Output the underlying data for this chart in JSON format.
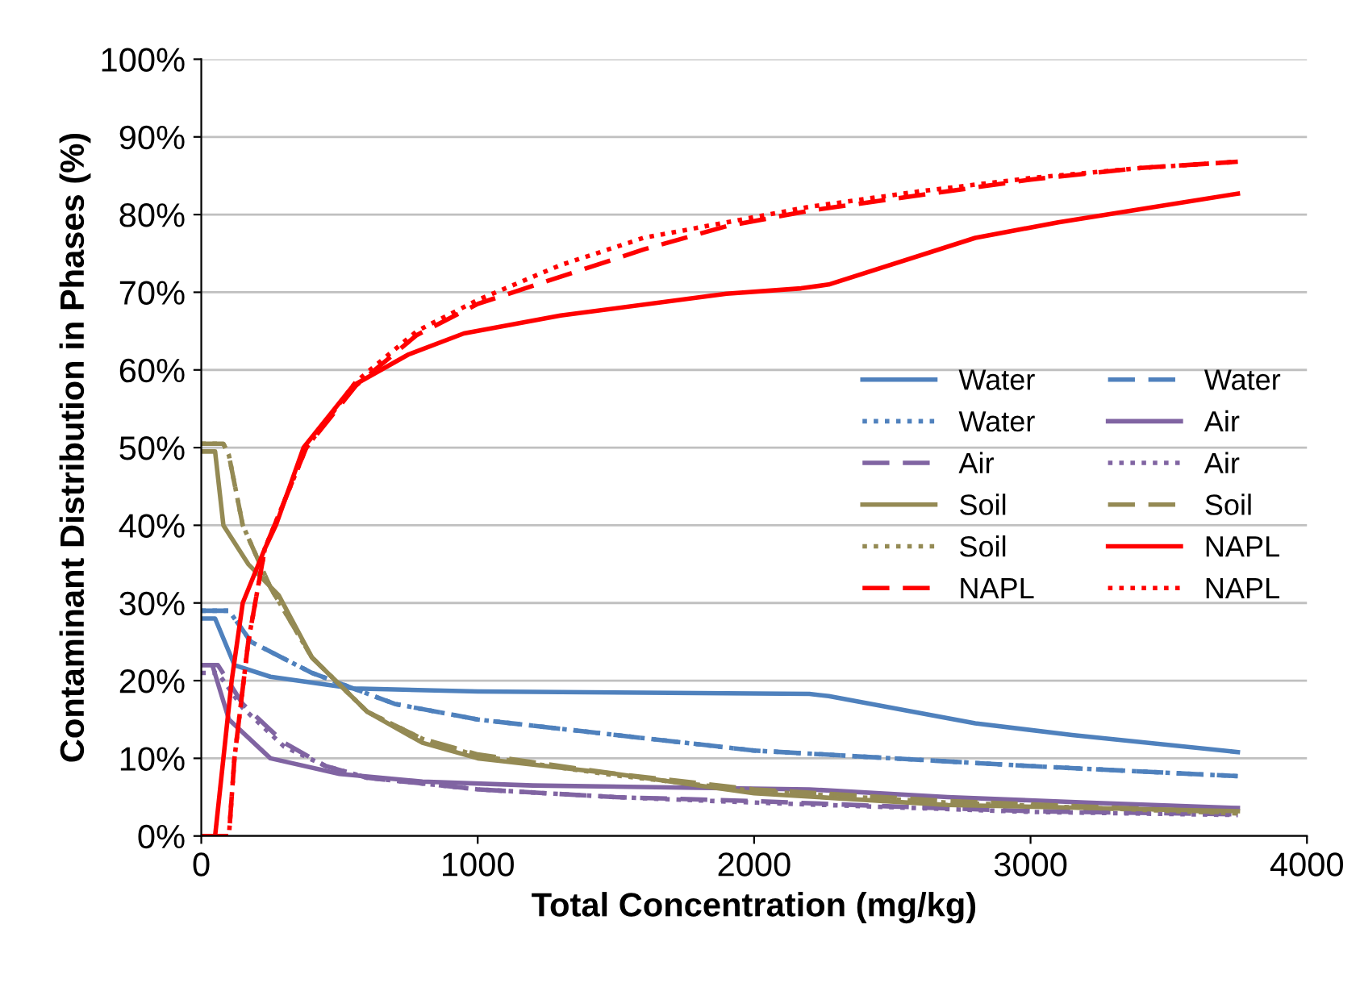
{
  "chart_data": {
    "type": "line",
    "xlabel": "Total Concentration (mg/kg)",
    "ylabel": "Contaminant Distribution in Phases (%)",
    "xlim": [
      0,
      4000
    ],
    "xticks": [
      0,
      1000,
      2000,
      3000,
      4000
    ],
    "ylim": [
      0,
      100
    ],
    "yticks": [
      {
        "value": 0,
        "label": "0%"
      },
      {
        "value": 10,
        "label": "10%"
      },
      {
        "value": 20,
        "label": "20%"
      },
      {
        "value": 30,
        "label": "30%"
      },
      {
        "value": 40,
        "label": "40%"
      },
      {
        "value": 50,
        "label": "50%"
      },
      {
        "value": 60,
        "label": "60%"
      },
      {
        "value": 70,
        "label": "70%"
      },
      {
        "value": 80,
        "label": "80%"
      },
      {
        "value": 90,
        "label": "90%"
      },
      {
        "value": 100,
        "label": "100%"
      }
    ],
    "grid": "y",
    "legend": "right",
    "marker": "none",
    "series": [
      {
        "name": "Water",
        "color": "#4f81bd",
        "line_style": "solid",
        "x": [
          0,
          50,
          120,
          250,
          550,
          1000,
          2200,
          2270,
          2800,
          3150,
          3750
        ],
        "values": [
          28,
          28,
          22,
          20.5,
          19,
          18.6,
          18.3,
          18,
          14.5,
          13,
          10.8
        ]
      },
      {
        "name": "Water",
        "color": "#4f81bd",
        "line_style": "dashed",
        "x": [
          0,
          100,
          180,
          400,
          700,
          1000,
          1500,
          2000,
          2500,
          3000,
          3750
        ],
        "values": [
          29,
          29,
          25,
          21,
          17,
          15,
          13,
          11,
          10,
          9,
          7.7
        ]
      },
      {
        "name": "Water",
        "color": "#4f81bd",
        "line_style": "dotted",
        "x": [
          0,
          100,
          180,
          400,
          700,
          1000,
          1500,
          2000,
          2500,
          3000,
          3750
        ],
        "values": [
          29,
          29,
          25,
          21,
          17,
          15,
          13,
          11,
          10,
          9,
          7.7
        ]
      },
      {
        "name": "Air",
        "color": "#8064a2",
        "line_style": "solid",
        "x": [
          0,
          40,
          100,
          250,
          500,
          800,
          1200,
          2200,
          2700,
          3200,
          3750
        ],
        "values": [
          22,
          22,
          15,
          10,
          8,
          7,
          6.5,
          6,
          5,
          4.3,
          3.6
        ]
      },
      {
        "name": "Air",
        "color": "#8064a2",
        "line_style": "dashed",
        "x": [
          0,
          60,
          150,
          300,
          450,
          600,
          1000,
          1500,
          2000,
          2500,
          3000,
          3750
        ],
        "values": [
          22,
          22,
          17,
          12,
          9,
          7.5,
          6,
          5,
          4.5,
          3.8,
          3.2,
          2.8
        ]
      },
      {
        "name": "Air",
        "color": "#8064a2",
        "line_style": "dotted",
        "x": [
          0,
          60,
          150,
          300,
          450,
          600,
          1000,
          1500,
          2000,
          2500,
          3000,
          3750
        ],
        "values": [
          21,
          21,
          16.5,
          11.5,
          9,
          7.5,
          6,
          5,
          4.3,
          3.7,
          3.1,
          2.7
        ]
      },
      {
        "name": "Soil",
        "color": "#948a54",
        "line_style": "solid",
        "x": [
          0,
          50,
          80,
          170,
          280,
          400,
          600,
          800,
          1000,
          1500,
          2000,
          2700,
          3750
        ],
        "values": [
          49.5,
          49.5,
          40,
          35,
          31,
          23,
          16,
          12,
          10,
          8,
          5.5,
          4,
          3.2
        ]
      },
      {
        "name": "Soil",
        "color": "#948a54",
        "line_style": "dashed",
        "x": [
          0,
          80,
          100,
          150,
          250,
          400,
          600,
          800,
          1000,
          1500,
          2000,
          2700,
          3750
        ],
        "values": [
          50.5,
          50.5,
          49,
          40,
          32,
          23,
          16,
          12.5,
          10.5,
          8,
          6,
          4.5,
          3
        ]
      },
      {
        "name": "Soil",
        "color": "#948a54",
        "line_style": "dotted",
        "x": [
          0,
          80,
          100,
          150,
          250,
          400,
          600,
          800,
          1000,
          1500,
          2000,
          2700,
          3750
        ],
        "values": [
          50.5,
          50.5,
          49,
          40,
          32,
          23,
          16,
          12.5,
          10.3,
          7.8,
          5.8,
          4.3,
          2.9
        ]
      },
      {
        "name": "NAPL",
        "color": "#ff0000",
        "line_style": "solid",
        "x": [
          0,
          50,
          80,
          110,
          150,
          230,
          270,
          370,
          550,
          750,
          950,
          1300,
          1900,
          2170,
          2270,
          2800,
          3100,
          3750
        ],
        "values": [
          0,
          0,
          10,
          20,
          30,
          37,
          40,
          50,
          58,
          62,
          64.7,
          67,
          69.8,
          70.5,
          71,
          77,
          79,
          82.7
        ]
      },
      {
        "name": "NAPL",
        "color": "#ff0000",
        "line_style": "dashed",
        "x": [
          0,
          100,
          120,
          170,
          230,
          380,
          560,
          780,
          1000,
          1300,
          1600,
          1900,
          2200,
          2600,
          3000,
          3400,
          3750
        ],
        "values": [
          0,
          0,
          10,
          25,
          37,
          50,
          58,
          64.5,
          68.5,
          72,
          75.5,
          78.5,
          80.5,
          82.5,
          84.5,
          86,
          86.8
        ]
      },
      {
        "name": "NAPL",
        "color": "#ff0000",
        "line_style": "dotted",
        "x": [
          0,
          100,
          120,
          170,
          230,
          380,
          560,
          780,
          1000,
          1300,
          1600,
          1900,
          2200,
          2600,
          3000,
          3400,
          3750
        ],
        "values": [
          0,
          0,
          10,
          25,
          37,
          50,
          58.5,
          65,
          69,
          73.5,
          77,
          79,
          81,
          83,
          84.7,
          86,
          86.8
        ]
      }
    ]
  }
}
